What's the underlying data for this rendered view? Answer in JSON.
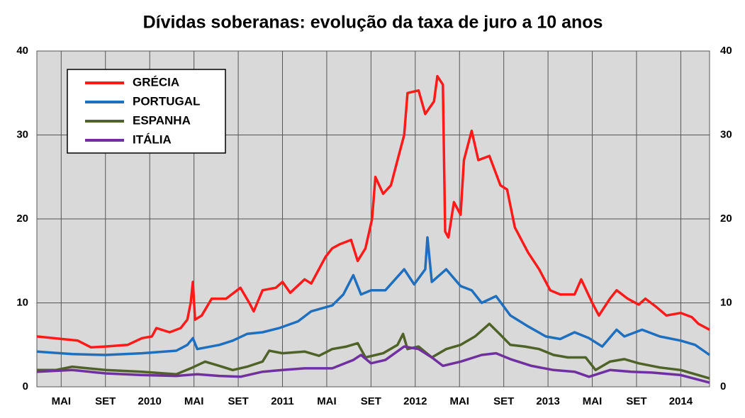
{
  "chart_data": {
    "type": "line",
    "title": "Dívidas soberanas: evolução da taxa de juro a 10 anos",
    "xlim": [
      1.8,
      62.6
    ],
    "xticks": [
      {
        "value": 4,
        "label": "MAI"
      },
      {
        "value": 8,
        "label": "SET"
      },
      {
        "value": 12,
        "label": "2010"
      },
      {
        "value": 16,
        "label": "MAI"
      },
      {
        "value": 20,
        "label": "SET"
      },
      {
        "value": 24,
        "label": "2011"
      },
      {
        "value": 28,
        "label": "MAI"
      },
      {
        "value": 32,
        "label": "SET"
      },
      {
        "value": 36,
        "label": "2012"
      },
      {
        "value": 40,
        "label": "MAI"
      },
      {
        "value": 44,
        "label": "SET"
      },
      {
        "value": 48,
        "label": "2013"
      },
      {
        "value": 52,
        "label": "MAI"
      },
      {
        "value": 56,
        "label": "SET"
      },
      {
        "value": 60,
        "label": "2014"
      }
    ],
    "ylim": [
      0,
      40
    ],
    "yticks": [
      0,
      10,
      20,
      30,
      40
    ],
    "y2lim": [
      0,
      40
    ],
    "y2ticks": [
      0,
      10,
      20,
      30,
      40
    ],
    "grid": true,
    "legend": "upper left",
    "series": [
      {
        "name": "GRÉCIA",
        "color": "#ff1a1a",
        "x": [
          1.8,
          5.5,
          6.7,
          8,
          10,
          11.3,
          12.2,
          12.6,
          13.8,
          14.8,
          15.4,
          15.7,
          15.9,
          16.1,
          16.7,
          17.6,
          18.9,
          20.2,
          21,
          21.4,
          22.2,
          23.4,
          24,
          24.7,
          26,
          26.6,
          27.9,
          28.5,
          29.2,
          30.2,
          30.8,
          31.5,
          32.1,
          32.4,
          33.1,
          33.8,
          34.4,
          35,
          35.3,
          36.3,
          36.9,
          37.7,
          38,
          38.5,
          38.7,
          39,
          39.5,
          40.1,
          40.4,
          41.1,
          41.7,
          42.7,
          43.7,
          44.3,
          45,
          46.2,
          47.2,
          48.2,
          49.1,
          50.4,
          51,
          52,
          52.6,
          53.6,
          54.2,
          55.2,
          56.2,
          56.8,
          57.8,
          58.7,
          60,
          61,
          61.6,
          62.6
        ],
        "values": [
          6.0,
          5.5,
          4.7,
          4.8,
          5.0,
          5.8,
          6.0,
          7.0,
          6.5,
          7.0,
          8.0,
          10.0,
          12.5,
          8.0,
          8.5,
          10.5,
          10.5,
          11.8,
          10.0,
          9.0,
          11.5,
          11.8,
          12.5,
          11.2,
          12.8,
          12.3,
          15.5,
          16.5,
          17.0,
          17.5,
          15.0,
          16.5,
          20.0,
          25.0,
          23.0,
          24.0,
          27.0,
          30.0,
          35.0,
          35.3,
          32.5,
          34.0,
          37.0,
          36.0,
          18.5,
          17.8,
          22.0,
          20.5,
          27.0,
          30.5,
          27.0,
          27.5,
          24.0,
          23.5,
          19.0,
          16.0,
          14.0,
          11.5,
          11.0,
          11.0,
          12.8,
          10.0,
          8.5,
          10.5,
          11.5,
          10.5,
          9.8,
          10.5,
          9.5,
          8.5,
          8.8,
          8.3,
          7.5,
          6.8
        ]
      },
      {
        "name": "PORTUGAL",
        "color": "#1f6fbf",
        "x": [
          1.8,
          5,
          8,
          11.3,
          14.4,
          15.4,
          15.9,
          16.3,
          18.3,
          19.5,
          20.8,
          22.2,
          23.7,
          25.4,
          26.6,
          28.5,
          29.5,
          30.4,
          31.1,
          32,
          33.3,
          35,
          35.9,
          36.9,
          37.1,
          37.5,
          38.8,
          40.1,
          41.1,
          42,
          43.3,
          44.6,
          46.2,
          47.8,
          49.1,
          50.4,
          51.7,
          52.9,
          54.2,
          54.9,
          56.5,
          58.1,
          60,
          61.3,
          62.6
        ],
        "values": [
          4.2,
          3.9,
          3.8,
          4.0,
          4.3,
          5.0,
          5.8,
          4.5,
          5.0,
          5.5,
          6.3,
          6.5,
          7.0,
          7.8,
          9.0,
          9.7,
          11.0,
          13.3,
          11.0,
          11.5,
          11.5,
          14.0,
          12.2,
          14.0,
          17.8,
          12.5,
          14.0,
          12.0,
          11.5,
          10.0,
          10.8,
          8.5,
          7.2,
          6.0,
          5.7,
          6.5,
          5.8,
          4.8,
          6.8,
          6.0,
          6.8,
          6.0,
          5.5,
          5.0,
          3.8
        ]
      },
      {
        "name": "ESPANHA",
        "color": "#4f6228",
        "x": [
          1.8,
          3.5,
          5,
          8,
          11.3,
          14.4,
          15.7,
          17,
          18.3,
          19.5,
          20.8,
          22.2,
          22.8,
          24,
          26,
          27.3,
          28.5,
          29.8,
          30.8,
          31.5,
          33.1,
          34.4,
          34.9,
          35.3,
          36.3,
          37.5,
          38.8,
          40.1,
          41.4,
          42.7,
          43.7,
          44.6,
          45.9,
          47.2,
          48.5,
          49.8,
          51.4,
          52.3,
          53.6,
          54.9,
          56.2,
          58.1,
          60,
          62.6
        ],
        "values": [
          2.0,
          2.0,
          2.4,
          2.0,
          1.8,
          1.5,
          2.2,
          3.0,
          2.5,
          2.0,
          2.4,
          3.0,
          4.3,
          4.0,
          4.2,
          3.7,
          4.5,
          4.8,
          5.2,
          3.5,
          4.0,
          5.0,
          6.3,
          4.5,
          4.8,
          3.5,
          4.5,
          5.0,
          6.0,
          7.5,
          6.2,
          5.0,
          4.8,
          4.5,
          3.8,
          3.5,
          3.5,
          2.0,
          3.0,
          3.3,
          2.8,
          2.3,
          2.0,
          1.0
        ]
      },
      {
        "name": "ITÁLIA",
        "color": "#7030a0",
        "x": [
          1.8,
          5,
          8,
          11.3,
          14.4,
          16.3,
          18.3,
          20.2,
          22.2,
          24,
          26,
          28.5,
          30.4,
          31.1,
          32,
          33.3,
          35,
          36.3,
          37.5,
          38.5,
          40.1,
          42,
          43.3,
          44.6,
          46.5,
          48.5,
          50.4,
          51.7,
          53.6,
          55.5,
          57.4,
          60,
          62.6
        ],
        "values": [
          1.8,
          2.0,
          1.6,
          1.4,
          1.3,
          1.5,
          1.3,
          1.2,
          1.8,
          2.0,
          2.2,
          2.2,
          3.2,
          3.8,
          2.8,
          3.2,
          4.8,
          4.5,
          3.5,
          2.5,
          3.0,
          3.8,
          4.0,
          3.3,
          2.5,
          2.0,
          1.8,
          1.2,
          2.0,
          1.8,
          1.7,
          1.4,
          0.5
        ]
      }
    ]
  }
}
